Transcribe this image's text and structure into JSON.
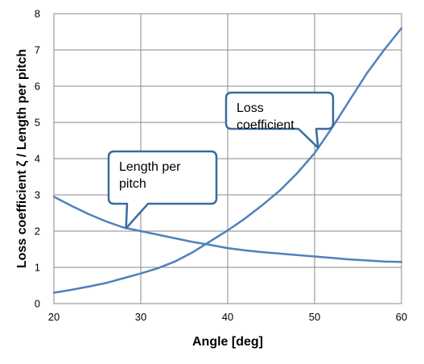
{
  "chart_data": {
    "type": "line",
    "xlabel": "Angle [deg]",
    "ylabel": "Loss coefficient ζ / Length per pitch",
    "xlim": [
      20,
      60
    ],
    "ylim": [
      0,
      8
    ],
    "x_ticks": [
      "20",
      "30",
      "40",
      "50",
      "60"
    ],
    "y_ticks": [
      "0",
      "1",
      "2",
      "3",
      "4",
      "5",
      "6",
      "7",
      "8"
    ],
    "grid": true,
    "line_color": "#4f81bd",
    "series": [
      {
        "key": "loss",
        "x": [
          20,
          22,
          24,
          26,
          28,
          30,
          32,
          34,
          36,
          38,
          40,
          42,
          44,
          46,
          48,
          50,
          52,
          54,
          56,
          58,
          60
        ],
        "values": [
          0.3,
          0.38,
          0.47,
          0.57,
          0.7,
          0.83,
          0.98,
          1.17,
          1.42,
          1.72,
          2.02,
          2.35,
          2.72,
          3.12,
          3.6,
          4.15,
          4.85,
          5.6,
          6.35,
          7.0,
          7.6
        ]
      },
      {
        "key": "length",
        "x": [
          20,
          22,
          24,
          26,
          28,
          30,
          32,
          34,
          36,
          38,
          40,
          42,
          44,
          46,
          48,
          50,
          52,
          54,
          56,
          58,
          60
        ],
        "values": [
          2.95,
          2.7,
          2.47,
          2.27,
          2.1,
          2.0,
          1.9,
          1.8,
          1.7,
          1.62,
          1.53,
          1.47,
          1.42,
          1.38,
          1.34,
          1.3,
          1.26,
          1.22,
          1.19,
          1.16,
          1.15
        ]
      }
    ],
    "annotations": [
      {
        "key": "length",
        "lines": [
          "Length per",
          "pitch"
        ],
        "point": [
          28.3,
          2.08
        ]
      },
      {
        "key": "loss",
        "lines": [
          "Loss",
          "coefficient"
        ],
        "point": [
          50.4,
          4.3
        ]
      }
    ]
  }
}
